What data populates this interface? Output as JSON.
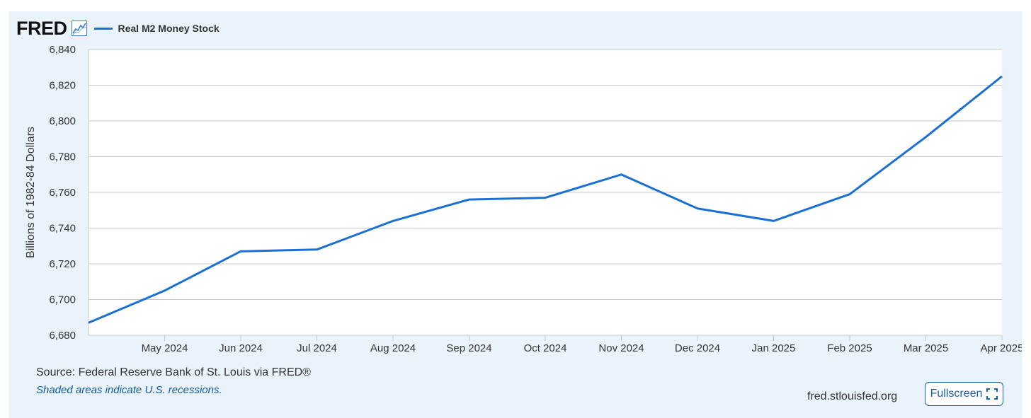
{
  "header": {
    "logo_text": "FRED",
    "logo_icon": "line-chart-icon",
    "legend_label": "Real M2 Money Stock"
  },
  "footer": {
    "source": "Source: Federal Reserve Bank of St. Louis via FRED®",
    "note": "Shaded areas indicate U.S. recessions.",
    "site": "fred.stlouisfed.org",
    "fullscreen_label": "Fullscreen",
    "fullscreen_icon": "expand-icon"
  },
  "colors": {
    "series": "#1a6fd6",
    "background": "#eaf3fb",
    "plot": "#ffffff",
    "grid": "#c8c8c8"
  },
  "chart_data": {
    "type": "line",
    "title": "",
    "xlabel": "",
    "ylabel": "Billions of 1982-84 Dollars",
    "ylim": [
      6680,
      6840
    ],
    "yticks": [
      "6,680",
      "6,700",
      "6,720",
      "6,740",
      "6,760",
      "6,780",
      "6,800",
      "6,820",
      "6,840"
    ],
    "ytick_values": [
      6680,
      6700,
      6720,
      6740,
      6760,
      6780,
      6800,
      6820,
      6840
    ],
    "xlim": [
      0,
      12
    ],
    "xticks": [
      "May 2024",
      "Jun 2024",
      "Jul 2024",
      "Aug 2024",
      "Sep 2024",
      "Oct 2024",
      "Nov 2024",
      "Dec 2024",
      "Jan 2025",
      "Feb 2025",
      "Mar 2025",
      "Apr 2025"
    ],
    "grid": true,
    "legend": "top-left",
    "series": [
      {
        "name": "Real M2 Money Stock",
        "x": [
          "Apr 2024",
          "May 2024",
          "Jun 2024",
          "Jul 2024",
          "Aug 2024",
          "Sep 2024",
          "Oct 2024",
          "Nov 2024",
          "Dec 2024",
          "Jan 2025",
          "Feb 2025",
          "Mar 2025",
          "Apr 2025"
        ],
        "values": [
          6687,
          6705,
          6727,
          6728,
          6744,
          6756,
          6757,
          6770,
          6751,
          6744,
          6759,
          6791,
          6825
        ]
      }
    ]
  }
}
